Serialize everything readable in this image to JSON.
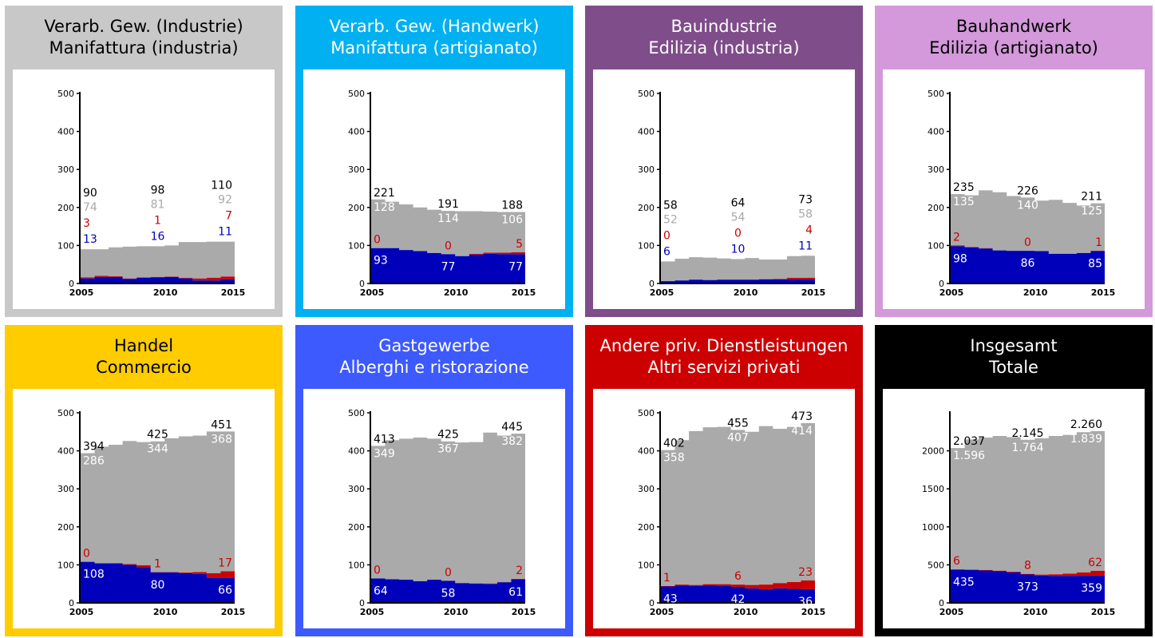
{
  "colors": {
    "total": "#000000",
    "grey": "#aaaaaa",
    "red": "#cc0000",
    "blue": "#0000bb",
    "label_grey": "#a8a8a8"
  },
  "panels": [
    {
      "title_line1": "Verarb. Gew. (Industrie)",
      "title_line2": "Manifattura (industria)",
      "bg": "#c8c8c8",
      "title_color": "#000000",
      "chart_data": {
        "type": "area",
        "yticks": [
          "0",
          "100",
          "200",
          "300",
          "400",
          "500"
        ],
        "ylim": [
          0,
          500
        ],
        "xticks": [
          "2005",
          "2010",
          "2015"
        ],
        "x": [
          2005,
          2006,
          2007,
          2008,
          2009,
          2010,
          2011,
          2012,
          2013,
          2014,
          2015
        ],
        "total": [
          90,
          90,
          95,
          97,
          98,
          98,
          100,
          109,
          109,
          110,
          110
        ],
        "red": [
          3,
          3,
          2,
          1,
          1,
          1,
          1,
          2,
          5,
          7,
          7
        ],
        "blue": [
          13,
          17,
          17,
          12,
          15,
          16,
          17,
          13,
          8,
          8,
          11
        ],
        "labels": [
          {
            "x": 2005,
            "align": "left",
            "total": "90",
            "grey": "74",
            "red": "3",
            "blue": "13",
            "pos": "above"
          },
          {
            "x": 2010,
            "align": "middle",
            "total": "98",
            "grey": "81",
            "red": "1",
            "blue": "16",
            "pos": "above"
          },
          {
            "x": 2015,
            "align": "right",
            "total": "110",
            "grey": "92",
            "red": "7",
            "blue": "11",
            "pos": "above"
          }
        ]
      }
    },
    {
      "title_line1": "Verarb. Gew. (Handwerk)",
      "title_line2": "Manifattura (artigianato)",
      "bg": "#00b0f0",
      "title_color": "#ffffff",
      "chart_data": {
        "type": "area",
        "yticks": [
          "0",
          "100",
          "200",
          "300",
          "400",
          "500"
        ],
        "ylim": [
          0,
          500
        ],
        "xticks": [
          "2005",
          "2010",
          "2015"
        ],
        "x": [
          2005,
          2006,
          2007,
          2008,
          2009,
          2010,
          2011,
          2012,
          2013,
          2014,
          2015
        ],
        "total": [
          221,
          215,
          208,
          200,
          194,
          191,
          190,
          190,
          189,
          188,
          188
        ],
        "red": [
          0,
          0,
          0,
          0,
          0,
          0,
          0,
          2,
          3,
          4,
          5
        ],
        "blue": [
          93,
          93,
          88,
          85,
          80,
          77,
          72,
          76,
          78,
          77,
          77
        ],
        "labels": [
          {
            "x": 2005,
            "align": "left",
            "total": "221",
            "grey": "128",
            "red": "0",
            "blue": "93",
            "pos": "inside"
          },
          {
            "x": 2010,
            "align": "middle",
            "total": "191",
            "grey": "114",
            "red": "0",
            "blue": "77",
            "pos": "inside"
          },
          {
            "x": 2015,
            "align": "right",
            "total": "188",
            "grey": "106",
            "red": "5",
            "blue": "77",
            "pos": "inside"
          }
        ]
      }
    },
    {
      "title_line1": "Bauindustrie",
      "title_line2": "Edilizia (industria)",
      "bg": "#7e4d8a",
      "title_color": "#ffffff",
      "chart_data": {
        "type": "area",
        "yticks": [
          "0",
          "100",
          "200",
          "300",
          "400",
          "500"
        ],
        "ylim": [
          0,
          500
        ],
        "xticks": [
          "2005",
          "2010",
          "2015"
        ],
        "x": [
          2005,
          2006,
          2007,
          2008,
          2009,
          2010,
          2011,
          2012,
          2013,
          2014,
          2015
        ],
        "total": [
          58,
          65,
          69,
          68,
          66,
          64,
          67,
          63,
          63,
          72,
          73
        ],
        "red": [
          0,
          0,
          0,
          0,
          0,
          0,
          0,
          0,
          1,
          4,
          4
        ],
        "blue": [
          6,
          8,
          10,
          9,
          10,
          10,
          10,
          11,
          11,
          11,
          11
        ],
        "labels": [
          {
            "x": 2005,
            "align": "left",
            "total": "58",
            "grey": "52",
            "red": "0",
            "blue": "6",
            "pos": "above"
          },
          {
            "x": 2010,
            "align": "middle",
            "total": "64",
            "grey": "54",
            "red": "0",
            "blue": "10",
            "pos": "above"
          },
          {
            "x": 2015,
            "align": "right",
            "total": "73",
            "grey": "58",
            "red": "4",
            "blue": "11",
            "pos": "above"
          }
        ]
      }
    },
    {
      "title_line1": "Bauhandwerk",
      "title_line2": "Edilizia (artigianato)",
      "bg": "#d399da",
      "title_color": "#000000",
      "chart_data": {
        "type": "area",
        "yticks": [
          "0",
          "100",
          "200",
          "300",
          "400",
          "500"
        ],
        "ylim": [
          0,
          500
        ],
        "xticks": [
          "2005",
          "2010",
          "2015"
        ],
        "x": [
          2005,
          2006,
          2007,
          2008,
          2009,
          2010,
          2011,
          2012,
          2013,
          2014,
          2015
        ],
        "total": [
          235,
          232,
          245,
          240,
          230,
          226,
          218,
          220,
          212,
          205,
          211
        ],
        "red": [
          2,
          1,
          1,
          0,
          0,
          0,
          0,
          0,
          0,
          0,
          1
        ],
        "blue": [
          98,
          95,
          92,
          87,
          86,
          86,
          85,
          78,
          78,
          80,
          85
        ],
        "labels": [
          {
            "x": 2005,
            "align": "left",
            "total": "235",
            "grey": "135",
            "red": "2",
            "blue": "98",
            "pos": "inside"
          },
          {
            "x": 2010,
            "align": "middle",
            "total": "226",
            "grey": "140",
            "red": "0",
            "blue": "86",
            "pos": "inside"
          },
          {
            "x": 2015,
            "align": "right",
            "total": "211",
            "grey": "125",
            "red": "1",
            "blue": "85",
            "pos": "inside"
          }
        ]
      }
    },
    {
      "title_line1": "Handel",
      "title_line2": "Commercio",
      "bg": "#ffcc00",
      "title_color": "#000000",
      "chart_data": {
        "type": "area",
        "yticks": [
          "0",
          "100",
          "200",
          "300",
          "400",
          "500"
        ],
        "ylim": [
          0,
          500
        ],
        "xticks": [
          "2005",
          "2010",
          "2015"
        ],
        "x": [
          2005,
          2006,
          2007,
          2008,
          2009,
          2010,
          2011,
          2012,
          2013,
          2014,
          2015
        ],
        "total": [
          394,
          411,
          416,
          426,
          423,
          425,
          433,
          438,
          440,
          451,
          451
        ],
        "red": [
          0,
          0,
          0,
          2,
          5,
          1,
          1,
          2,
          5,
          12,
          17
        ],
        "blue": [
          108,
          104,
          104,
          100,
          94,
          80,
          80,
          78,
          76,
          66,
          66
        ],
        "labels": [
          {
            "x": 2005,
            "align": "left",
            "total": "394",
            "grey": "286",
            "red": "0",
            "blue": "108",
            "pos": "inside"
          },
          {
            "x": 2010,
            "align": "middle",
            "total": "425",
            "grey": "344",
            "red": "1",
            "blue": "80",
            "pos": "inside"
          },
          {
            "x": 2015,
            "align": "right",
            "total": "451",
            "grey": "368",
            "red": "17",
            "blue": "66",
            "pos": "inside"
          }
        ]
      }
    },
    {
      "title_line1": "Gastgewerbe",
      "title_line2": "Alberghi e ristorazione",
      "bg": "#3d5afe",
      "title_color": "#ffffff",
      "chart_data": {
        "type": "area",
        "yticks": [
          "0",
          "100",
          "200",
          "300",
          "400",
          "500"
        ],
        "ylim": [
          0,
          500
        ],
        "xticks": [
          "2005",
          "2010",
          "2015"
        ],
        "x": [
          2005,
          2006,
          2007,
          2008,
          2009,
          2010,
          2011,
          2012,
          2013,
          2014,
          2015
        ],
        "total": [
          413,
          428,
          432,
          435,
          432,
          425,
          422,
          423,
          448,
          440,
          445
        ],
        "red": [
          0,
          0,
          0,
          0,
          0,
          0,
          0,
          0,
          1,
          1,
          2
        ],
        "blue": [
          64,
          62,
          61,
          57,
          61,
          58,
          52,
          51,
          50,
          54,
          61
        ],
        "labels": [
          {
            "x": 2005,
            "align": "left",
            "total": "413",
            "grey": "349",
            "red": "0",
            "blue": "64",
            "pos": "inside"
          },
          {
            "x": 2010,
            "align": "middle",
            "total": "425",
            "grey": "367",
            "red": "0",
            "blue": "58",
            "pos": "inside"
          },
          {
            "x": 2015,
            "align": "right",
            "total": "445",
            "grey": "382",
            "red": "2",
            "blue": "61",
            "pos": "inside"
          }
        ]
      }
    },
    {
      "title_line1": "Andere priv. Dienstleistungen",
      "title_line2": "Altri servizi privati",
      "bg": "#cc0000",
      "title_color": "#ffffff",
      "chart_data": {
        "type": "area",
        "yticks": [
          "0",
          "100",
          "200",
          "300",
          "400",
          "500"
        ],
        "ylim": [
          0,
          500
        ],
        "xticks": [
          "2005",
          "2010",
          "2015"
        ],
        "x": [
          2005,
          2006,
          2007,
          2008,
          2009,
          2010,
          2011,
          2012,
          2013,
          2014,
          2015
        ],
        "total": [
          402,
          428,
          452,
          462,
          463,
          455,
          450,
          465,
          458,
          463,
          473
        ],
        "red": [
          1,
          2,
          2,
          3,
          5,
          6,
          9,
          12,
          14,
          18,
          23
        ],
        "blue": [
          43,
          46,
          45,
          46,
          44,
          42,
          38,
          36,
          38,
          37,
          36
        ],
        "labels": [
          {
            "x": 2005,
            "align": "left",
            "total": "402",
            "grey": "358",
            "red": "1",
            "blue": "43",
            "pos": "inside"
          },
          {
            "x": 2010,
            "align": "middle",
            "total": "455",
            "grey": "407",
            "red": "6",
            "blue": "42",
            "pos": "inside"
          },
          {
            "x": 2015,
            "align": "right",
            "total": "473",
            "grey": "414",
            "red": "23",
            "blue": "36",
            "pos": "inside"
          }
        ]
      }
    },
    {
      "title_line1": "Insgesamt",
      "title_line2": "Totale",
      "bg": "#000000",
      "title_color": "#ffffff",
      "chart_data": {
        "type": "area",
        "yticks": [
          "0",
          "500",
          "1000",
          "1500",
          "2000"
        ],
        "ylim": [
          0,
          2500
        ],
        "xticks": [
          "2005",
          "2010",
          "2015"
        ],
        "x": [
          2005,
          2006,
          2007,
          2008,
          2009,
          2010,
          2011,
          2012,
          2013,
          2014,
          2015
        ],
        "total": [
          2037,
          2150,
          2175,
          2195,
          2180,
          2145,
          2165,
          2195,
          2210,
          2245,
          2260
        ],
        "red": [
          6,
          6,
          7,
          8,
          10,
          8,
          12,
          20,
          30,
          45,
          62
        ],
        "blue": [
          435,
          433,
          425,
          415,
          400,
          373,
          360,
          355,
          355,
          356,
          359
        ],
        "labels": [
          {
            "x": 2005,
            "align": "left",
            "total": "2.037",
            "grey": "1.596",
            "red": "6",
            "blue": "435",
            "pos": "inside"
          },
          {
            "x": 2010,
            "align": "middle",
            "total": "2.145",
            "grey": "1.764",
            "red": "8",
            "blue": "373",
            "pos": "inside"
          },
          {
            "x": 2015,
            "align": "right",
            "total": "2.260",
            "grey": "1.839",
            "red": "62",
            "blue": "359",
            "pos": "inside"
          }
        ]
      }
    }
  ]
}
